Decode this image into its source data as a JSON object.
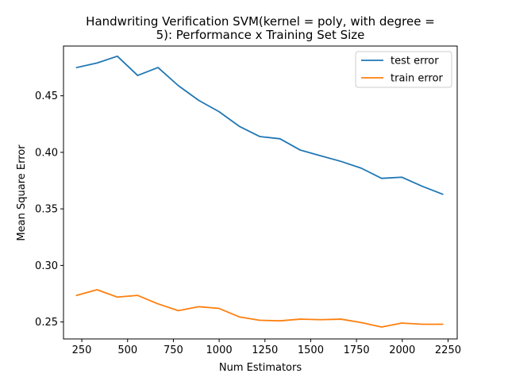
{
  "chart_data": {
    "type": "line",
    "title_lines": [
      "Handwriting Verification SVM(kernel = poly, with degree =",
      "5): Performance x Training Set Size"
    ],
    "xlabel": "Num Estimators",
    "ylabel": "Mean Square Error",
    "xlim": [
      150,
      2300
    ],
    "ylim": [
      0.235,
      0.494
    ],
    "xticks": [
      250,
      500,
      750,
      1000,
      1250,
      1500,
      1750,
      2000,
      2250
    ],
    "xtick_labels": [
      "250",
      "500",
      "750",
      "1000",
      "1250",
      "1500",
      "1750",
      "2000",
      "2250"
    ],
    "yticks": [
      0.25,
      0.3,
      0.35,
      0.4,
      0.45
    ],
    "ytick_labels": [
      "0.25",
      "0.30",
      "0.35",
      "0.40",
      "0.45"
    ],
    "grid": false,
    "legend_position": "upper-right",
    "series": [
      {
        "name": "test error",
        "color": "#1f77b4",
        "x": [
          222,
          333,
          444,
          555,
          666,
          777,
          888,
          999,
          1110,
          1221,
          1332,
          1443,
          1554,
          1665,
          1776,
          1887,
          1998,
          2109,
          2220
        ],
        "y": [
          0.475,
          0.479,
          0.485,
          0.468,
          0.475,
          0.459,
          0.446,
          0.436,
          0.423,
          0.414,
          0.412,
          0.402,
          0.397,
          0.392,
          0.386,
          0.377,
          0.378,
          0.37,
          0.363
        ]
      },
      {
        "name": "train error",
        "color": "#ff7f0e",
        "x": [
          222,
          333,
          444,
          555,
          666,
          777,
          888,
          999,
          1110,
          1221,
          1332,
          1443,
          1554,
          1665,
          1776,
          1887,
          1998,
          2109,
          2220
        ],
        "y": [
          0.2735,
          0.2785,
          0.272,
          0.2735,
          0.266,
          0.26,
          0.2635,
          0.262,
          0.2545,
          0.2515,
          0.251,
          0.2525,
          0.252,
          0.2525,
          0.2495,
          0.2455,
          0.249,
          0.248,
          0.248
        ]
      }
    ]
  }
}
